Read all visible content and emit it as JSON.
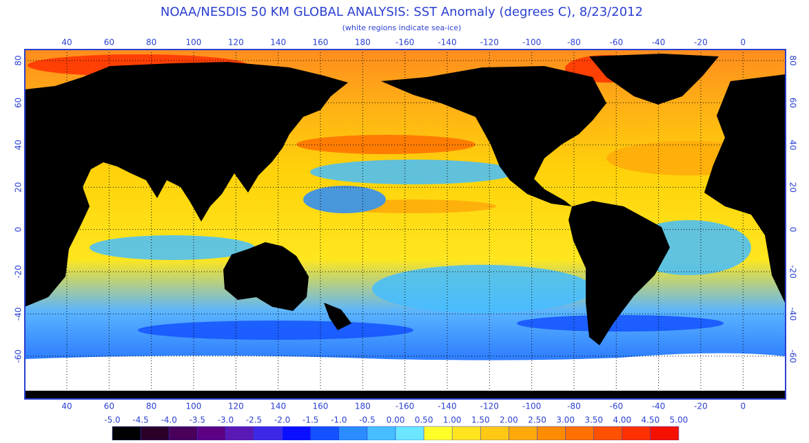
{
  "header": {
    "title": "NOAA/NESDIS 50 KM GLOBAL ANALYSIS: SST Anomaly (degrees C), 8/23/2012",
    "subtitle": "(white regions indicate sea-ice)"
  },
  "map": {
    "longitude_labels": [
      "40",
      "60",
      "80",
      "100",
      "120",
      "140",
      "160",
      "180",
      "-160",
      "-140",
      "-120",
      "-100",
      "-80",
      "-60",
      "-40",
      "-20",
      "0"
    ],
    "latitude_labels": [
      "80",
      "60",
      "40",
      "20",
      "0",
      "-20",
      "-40",
      "-60"
    ]
  },
  "colorbar": {
    "labels": [
      "-5.0",
      "-4.5",
      "-4.0",
      "-3.5",
      "-3.0",
      "-2.5",
      "-2.0",
      "-1.5",
      "-1.0",
      "-0.5",
      "0.00",
      "0.50",
      "1.00",
      "1.50",
      "2.00",
      "2.50",
      "3.00",
      "3.50",
      "4.00",
      "4.50",
      "5.00"
    ],
    "colors": [
      "#000000",
      "#2a0028",
      "#48005a",
      "#5c0084",
      "#5a18b4",
      "#3c28e6",
      "#0a10ff",
      "#1452ff",
      "#2a8cff",
      "#46beff",
      "#6ae6ff",
      "#ffff28",
      "#ffe41e",
      "#ffc814",
      "#ffaa0a",
      "#ff8c00",
      "#ff7000",
      "#ff5000",
      "#ff3000",
      "#f51000"
    ]
  }
}
